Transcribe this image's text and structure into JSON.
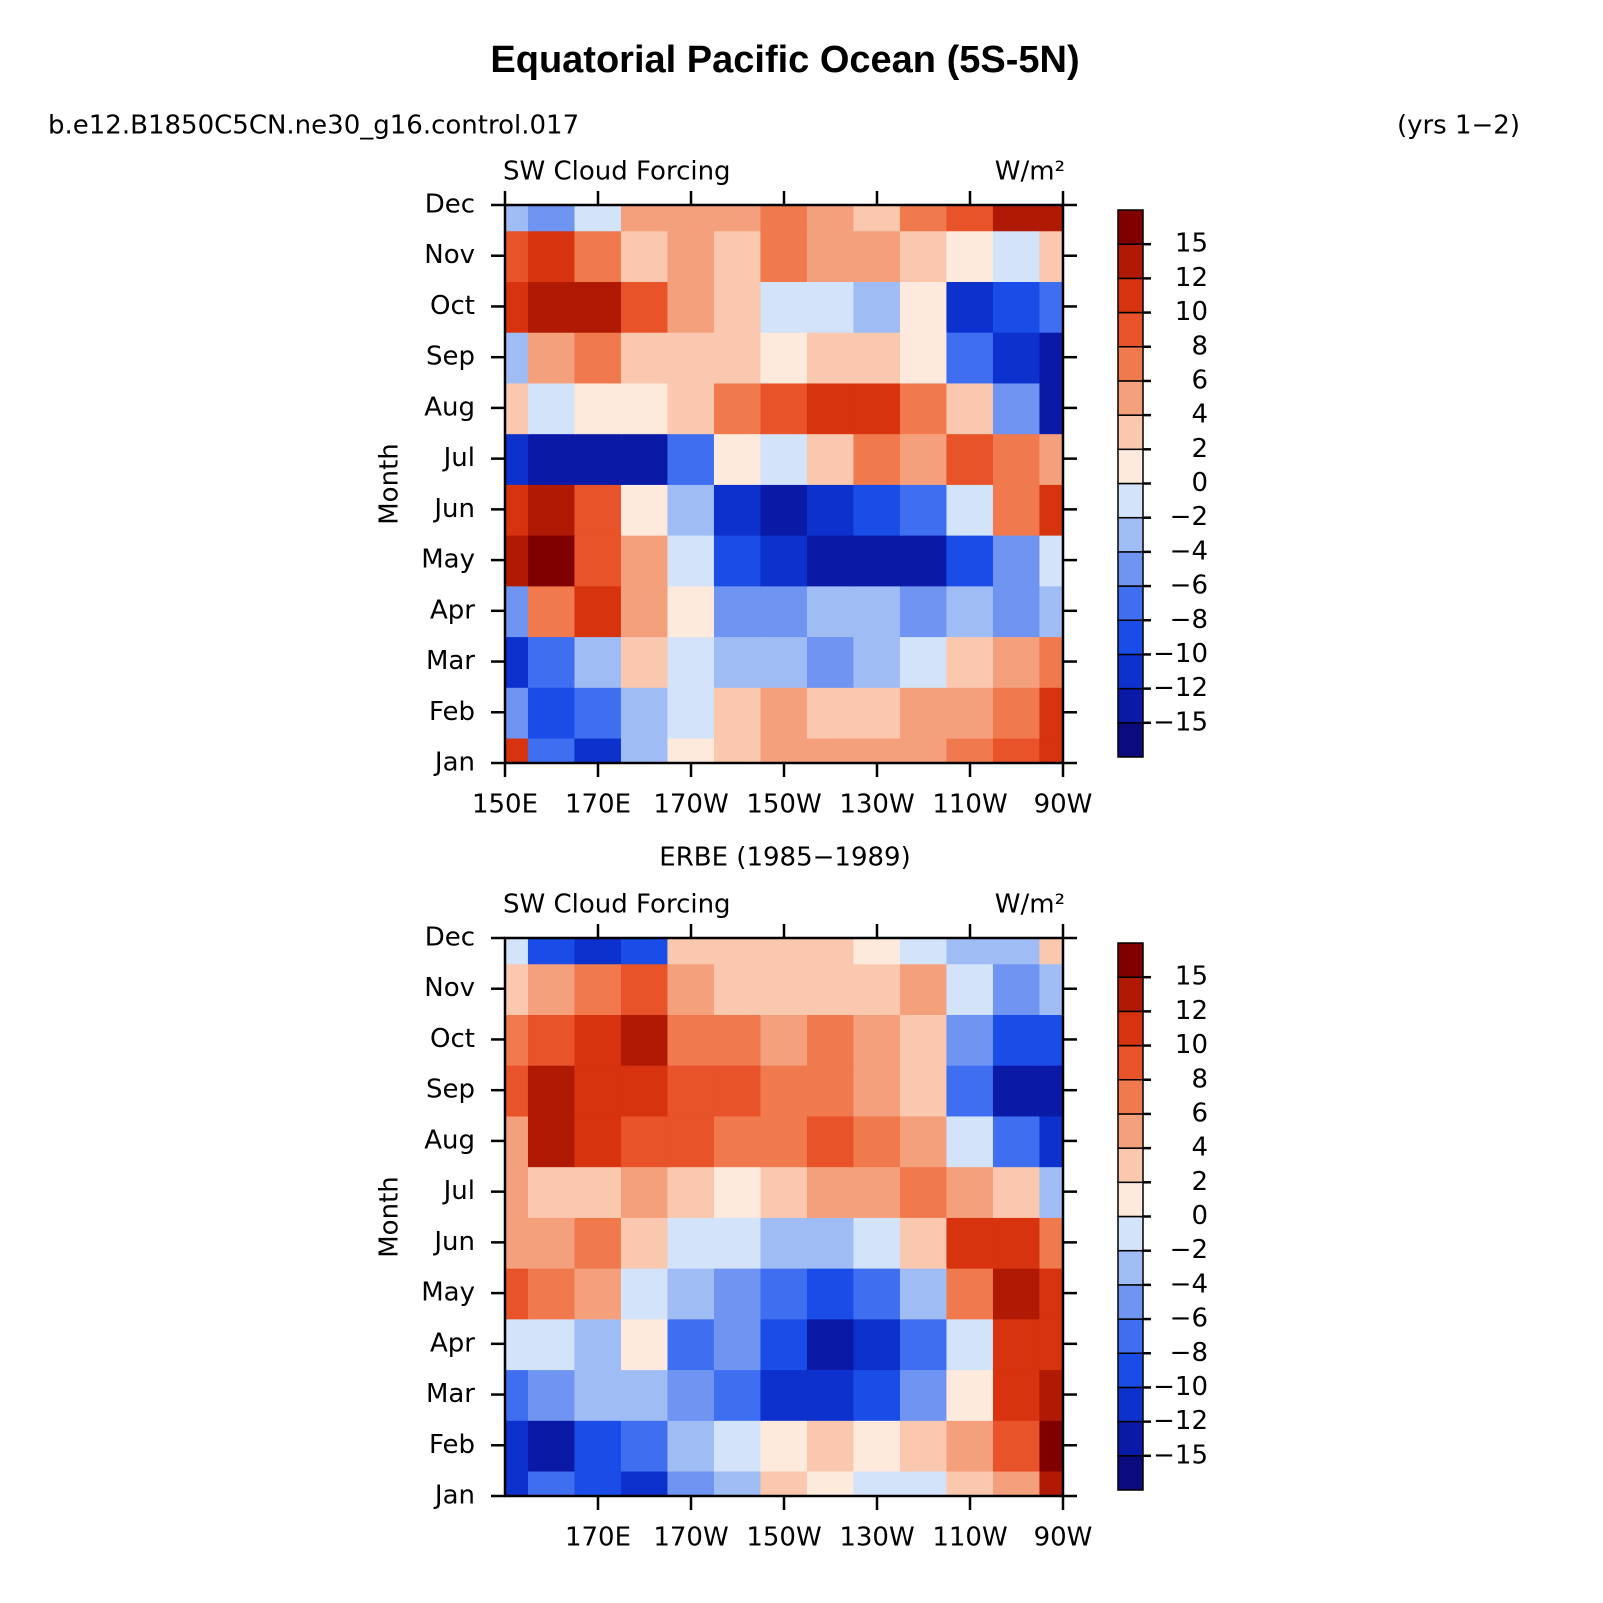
{
  "title": "Equatorial Pacific Ocean (5S-5N)",
  "case": "b.e12.B1850C5CN.ne30_g16.control.017",
  "years": "(yrs 1−2)",
  "chart_data": [
    {
      "type": "contour",
      "left_string": "SW Cloud Forcing",
      "units": "W/m²",
      "ylabel": "Month",
      "categories": [
        "Jan",
        "Feb",
        "Mar",
        "Apr",
        "May",
        "Jun",
        "Jul",
        "Aug",
        "Sep",
        "Oct",
        "Nov",
        "Dec"
      ],
      "x": [
        150,
        160,
        170,
        180,
        190,
        200,
        210,
        220,
        230,
        240,
        250,
        260,
        270
      ],
      "xlim": [
        150,
        270
      ],
      "xticks": [
        {
          "value": 150,
          "label": "150E"
        },
        {
          "value": 170,
          "label": "170E"
        },
        {
          "value": 190,
          "label": "170W"
        },
        {
          "value": 210,
          "label": "150W"
        },
        {
          "value": 230,
          "label": "130W"
        },
        {
          "value": 250,
          "label": "110W"
        },
        {
          "value": 270,
          "label": "90W"
        }
      ],
      "values": [
        [
          10,
          -8,
          -12,
          -4,
          0,
          3,
          5,
          4,
          4,
          4,
          6,
          8,
          10
        ],
        [
          -6,
          -10,
          -8,
          -4,
          -2,
          2,
          4,
          2,
          2,
          4,
          4,
          6,
          10
        ],
        [
          -12,
          -8,
          -4,
          2,
          -2,
          -4,
          -4,
          -6,
          -4,
          -2,
          2,
          4,
          6
        ],
        [
          -6,
          6,
          10,
          4,
          0,
          -6,
          -6,
          -4,
          -4,
          -6,
          -4,
          -6,
          -4
        ],
        [
          12,
          15,
          8,
          4,
          -2,
          -10,
          -12,
          -15,
          -15,
          -13,
          -10,
          -6,
          -2
        ],
        [
          10,
          12,
          8,
          0,
          -4,
          -12,
          -15,
          -12,
          -10,
          -8,
          -2,
          6,
          10
        ],
        [
          -12,
          -15,
          -13,
          -15,
          -8,
          0,
          -2,
          2,
          6,
          4,
          8,
          6,
          4
        ],
        [
          2,
          -2,
          0,
          0,
          2,
          6,
          8,
          10,
          10,
          6,
          2,
          -6,
          -15
        ],
        [
          -4,
          4,
          6,
          2,
          2,
          2,
          0,
          2,
          2,
          0,
          -8,
          -12,
          -15
        ],
        [
          10,
          14,
          12,
          8,
          4,
          2,
          -2,
          -2,
          -4,
          0,
          -12,
          -10,
          -8
        ],
        [
          8,
          10,
          6,
          2,
          4,
          2,
          6,
          4,
          4,
          2,
          0,
          -2,
          2
        ],
        [
          -4,
          -6,
          -2,
          4,
          4,
          4,
          6,
          4,
          2,
          6,
          8,
          12,
          14
        ]
      ],
      "levels": [
        {
          "value": -15,
          "label": "−15"
        },
        {
          "value": -12,
          "label": "−12"
        },
        {
          "value": -10,
          "label": "−10"
        },
        {
          "value": -8,
          "label": "−8"
        },
        {
          "value": -6,
          "label": "−6"
        },
        {
          "value": -4,
          "label": "−4"
        },
        {
          "value": -2,
          "label": "−2"
        },
        0,
        2,
        4,
        6,
        8,
        10,
        12,
        15
      ],
      "colors": [
        "#0b0b7d",
        "#0a1aa6",
        "#0d31cc",
        "#1a4de8",
        "#3f6ff0",
        "#6f94f2",
        "#a0bcf5",
        "#d2e3fa",
        "#fdeadc",
        "#fac8ae",
        "#f5a07c",
        "#f07a4e",
        "#e8532a",
        "#d6330e",
        "#b01a05",
        "#800000"
      ]
    },
    {
      "type": "contour",
      "title": "ERBE (1985−1989)",
      "left_string": "SW Cloud Forcing",
      "units": "W/m²",
      "ylabel": "Month",
      "categories": [
        "Jan",
        "Feb",
        "Mar",
        "Apr",
        "May",
        "Jun",
        "Jul",
        "Aug",
        "Sep",
        "Oct",
        "Nov",
        "Dec"
      ],
      "x": [
        150,
        160,
        170,
        180,
        190,
        200,
        210,
        220,
        230,
        240,
        250,
        260,
        270
      ],
      "xlim": [
        150,
        270
      ],
      "xticks": [
        {
          "value": 170,
          "label": "170E"
        },
        {
          "value": 190,
          "label": "170W"
        },
        {
          "value": 210,
          "label": "150W"
        },
        {
          "value": 230,
          "label": "130W"
        },
        {
          "value": 250,
          "label": "110W"
        },
        {
          "value": 270,
          "label": "90W"
        }
      ],
      "values": [
        [
          -12,
          -8,
          -10,
          -12,
          -6,
          -4,
          2,
          0,
          -2,
          -2,
          2,
          4,
          12
        ],
        [
          -12,
          -14,
          -10,
          -8,
          -4,
          -2,
          0,
          2,
          0,
          2,
          4,
          8,
          15
        ],
        [
          -8,
          -6,
          -4,
          -4,
          -6,
          -8,
          -12,
          -12,
          -10,
          -6,
          0,
          10,
          14
        ],
        [
          -2,
          -2,
          -4,
          0,
          -8,
          -6,
          -10,
          -13,
          -12,
          -8,
          -2,
          10,
          10
        ],
        [
          8,
          6,
          4,
          -2,
          -4,
          -6,
          -8,
          -10,
          -8,
          -4,
          6,
          12,
          10
        ],
        [
          4,
          4,
          6,
          2,
          -2,
          -2,
          -4,
          -4,
          -2,
          2,
          10,
          10,
          6
        ],
        [
          4,
          2,
          2,
          4,
          2,
          0,
          2,
          4,
          4,
          6,
          4,
          2,
          -4
        ],
        [
          4,
          12,
          10,
          8,
          8,
          6,
          6,
          8,
          6,
          4,
          -2,
          -8,
          -12
        ],
        [
          8,
          12,
          10,
          10,
          8,
          8,
          6,
          6,
          4,
          2,
          -8,
          -14,
          -15
        ],
        [
          6,
          8,
          10,
          12,
          6,
          6,
          4,
          6,
          4,
          2,
          -6,
          -10,
          -10
        ],
        [
          2,
          4,
          6,
          8,
          4,
          2,
          2,
          2,
          2,
          4,
          -2,
          -6,
          -4
        ],
        [
          -2,
          -10,
          -12,
          -10,
          2,
          2,
          2,
          2,
          0,
          -2,
          -4,
          -4,
          2
        ]
      ],
      "levels": [
        {
          "value": -15,
          "label": "−15"
        },
        {
          "value": -12,
          "label": "−12"
        },
        {
          "value": -10,
          "label": "−10"
        },
        {
          "value": -8,
          "label": "−8"
        },
        {
          "value": -6,
          "label": "−6"
        },
        {
          "value": -4,
          "label": "−4"
        },
        {
          "value": -2,
          "label": "−2"
        },
        0,
        2,
        4,
        6,
        8,
        10,
        12,
        15
      ],
      "colors": [
        "#0b0b7d",
        "#0a1aa6",
        "#0d31cc",
        "#1a4de8",
        "#3f6ff0",
        "#6f94f2",
        "#a0bcf5",
        "#d2e3fa",
        "#fdeadc",
        "#fac8ae",
        "#f5a07c",
        "#f07a4e",
        "#e8532a",
        "#d6330e",
        "#b01a05",
        "#800000"
      ]
    }
  ]
}
